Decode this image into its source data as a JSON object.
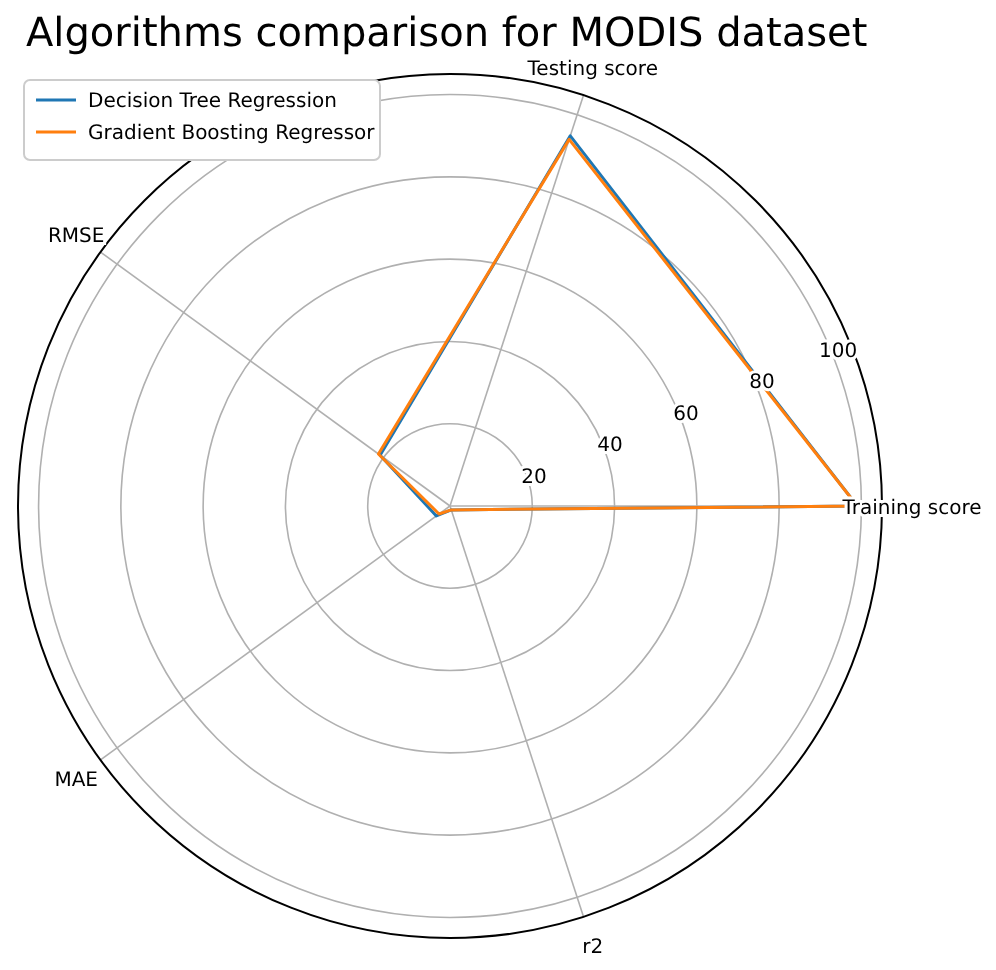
{
  "chart_data": {
    "type": "radar",
    "title": "Algorithms comparison for MODIS dataset",
    "categories": [
      "Testing score",
      "Training score",
      "r2",
      "MAE",
      "RMSE"
    ],
    "series": [
      {
        "name": "Decision Tree Regression",
        "color": "#1f77b4",
        "values": [
          94.6,
          99,
          1,
          4.1,
          21
        ]
      },
      {
        "name": "Gradient Boosting Regressor",
        "color": "#ff7f0e",
        "values": [
          93.7,
          99,
          1,
          3.3,
          21.5
        ]
      }
    ],
    "ylim": [
      0,
      105
    ],
    "yticks": [
      20,
      40,
      60,
      80,
      100
    ],
    "grid": true,
    "legend": "top left"
  }
}
